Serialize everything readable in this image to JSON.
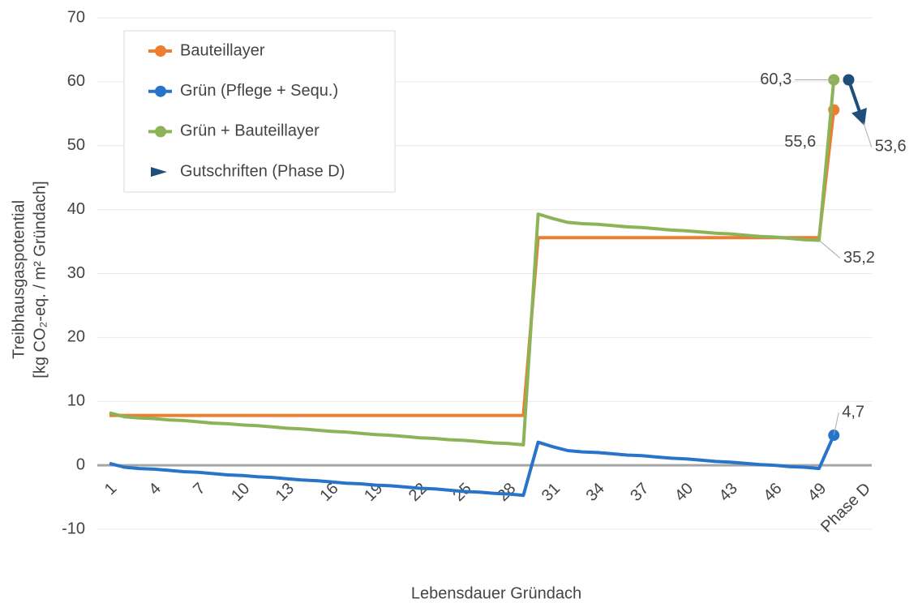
{
  "chart_data": {
    "type": "line",
    "y_label": [
      "Treibhausgaspotential",
      "[kg CO₂-eq. / m² Gründach]"
    ],
    "x_label": "Lebensdauer Gründach",
    "categories": [
      "1",
      null,
      null,
      "4",
      null,
      null,
      "7",
      null,
      null,
      "10",
      null,
      null,
      "13",
      null,
      null,
      "16",
      null,
      null,
      "19",
      null,
      null,
      "22",
      null,
      null,
      "25",
      null,
      null,
      "28",
      null,
      null,
      "31",
      null,
      null,
      "34",
      null,
      null,
      "37",
      null,
      null,
      "40",
      null,
      null,
      "43",
      null,
      null,
      "46",
      null,
      null,
      "49",
      null,
      null,
      "Phase D"
    ],
    "ylim": [
      -10,
      70
    ],
    "yticks": [
      -10,
      0,
      10,
      20,
      30,
      40,
      50,
      60,
      70
    ],
    "grid": true,
    "legend": "top-left",
    "series": [
      {
        "name": "Bauteillayer",
        "color": "#ed7d31",
        "values": [
          7.8,
          7.8,
          7.8,
          7.8,
          7.8,
          7.8,
          7.8,
          7.8,
          7.8,
          7.8,
          7.8,
          7.8,
          7.8,
          7.8,
          7.8,
          7.8,
          7.8,
          7.8,
          7.8,
          7.8,
          7.8,
          7.8,
          7.8,
          7.8,
          7.8,
          7.8,
          7.8,
          7.8,
          7.8,
          35.6,
          35.6,
          35.6,
          35.6,
          35.6,
          35.6,
          35.6,
          35.6,
          35.6,
          35.6,
          35.6,
          35.6,
          35.6,
          35.6,
          35.6,
          35.6,
          35.6,
          35.6,
          35.6,
          35.6,
          55.6,
          null,
          null
        ],
        "value_labels": [
          null,
          null,
          null,
          null,
          null,
          null,
          null,
          null,
          null,
          null,
          null,
          null,
          null,
          null,
          null,
          null,
          null,
          null,
          null,
          null,
          null,
          null,
          null,
          null,
          null,
          null,
          null,
          null,
          null,
          null,
          null,
          null,
          null,
          null,
          null,
          null,
          null,
          null,
          null,
          null,
          null,
          null,
          null,
          null,
          null,
          null,
          null,
          null,
          null,
          "55,6",
          null,
          null
        ]
      },
      {
        "name": "Grün (Pflege + Sequ.)",
        "color": "#2874c8",
        "values": [
          0.3,
          -0.3,
          -0.5,
          -0.6,
          -0.8,
          -1.0,
          -1.1,
          -1.3,
          -1.5,
          -1.6,
          -1.8,
          -1.9,
          -2.1,
          -2.3,
          -2.4,
          -2.6,
          -2.8,
          -2.9,
          -3.1,
          -3.2,
          -3.4,
          -3.6,
          -3.7,
          -3.9,
          -4.1,
          -4.2,
          -4.4,
          -4.5,
          -4.7,
          3.6,
          2.9,
          2.3,
          2.1,
          2.0,
          1.8,
          1.6,
          1.5,
          1.3,
          1.1,
          1.0,
          0.8,
          0.6,
          0.5,
          0.3,
          0.1,
          0.0,
          -0.2,
          -0.3,
          -0.5,
          4.7,
          null,
          null
        ],
        "value_labels": [
          null,
          null,
          null,
          null,
          null,
          null,
          null,
          null,
          null,
          null,
          null,
          null,
          null,
          null,
          null,
          null,
          null,
          null,
          null,
          null,
          null,
          null,
          null,
          null,
          null,
          null,
          null,
          null,
          null,
          null,
          null,
          null,
          null,
          null,
          null,
          null,
          null,
          null,
          null,
          null,
          null,
          null,
          null,
          null,
          null,
          null,
          null,
          null,
          null,
          "4,7",
          null,
          null
        ]
      },
      {
        "name": "Grün + Bauteillayer",
        "color": "#8cb357",
        "values": [
          8.2,
          7.6,
          7.4,
          7.3,
          7.1,
          7.0,
          6.8,
          6.6,
          6.5,
          6.3,
          6.2,
          6.0,
          5.8,
          5.7,
          5.5,
          5.3,
          5.2,
          5.0,
          4.8,
          4.7,
          4.5,
          4.3,
          4.2,
          4.0,
          3.9,
          3.7,
          3.5,
          3.4,
          3.2,
          39.3,
          38.6,
          38.0,
          37.8,
          37.7,
          37.5,
          37.3,
          37.2,
          37.0,
          36.8,
          36.7,
          36.5,
          36.3,
          36.2,
          36.0,
          35.8,
          35.7,
          35.5,
          35.3,
          35.2,
          60.3,
          null,
          null
        ],
        "value_labels": [
          null,
          null,
          null,
          null,
          null,
          null,
          null,
          null,
          null,
          null,
          null,
          null,
          null,
          null,
          null,
          null,
          null,
          null,
          null,
          null,
          null,
          null,
          null,
          null,
          null,
          null,
          null,
          null,
          null,
          null,
          null,
          null,
          null,
          null,
          null,
          null,
          null,
          null,
          null,
          null,
          null,
          null,
          null,
          null,
          null,
          null,
          null,
          null,
          "35,2",
          "60,3",
          null,
          null
        ]
      },
      {
        "name": "Gutschriften (Phase D)",
        "color": "#1f4e79",
        "style": "arrow",
        "values": [
          null,
          null,
          null,
          null,
          null,
          null,
          null,
          null,
          null,
          null,
          null,
          null,
          null,
          null,
          null,
          null,
          null,
          null,
          null,
          null,
          null,
          null,
          null,
          null,
          null,
          null,
          null,
          null,
          null,
          null,
          null,
          null,
          null,
          null,
          null,
          null,
          null,
          null,
          null,
          null,
          null,
          null,
          null,
          null,
          null,
          null,
          null,
          null,
          null,
          null,
          60.3,
          53.6
        ],
        "value_labels": [
          null,
          null,
          null,
          null,
          null,
          null,
          null,
          null,
          null,
          null,
          null,
          null,
          null,
          null,
          null,
          null,
          null,
          null,
          null,
          null,
          null,
          null,
          null,
          null,
          null,
          null,
          null,
          null,
          null,
          null,
          null,
          null,
          null,
          null,
          null,
          null,
          null,
          null,
          null,
          null,
          null,
          null,
          null,
          null,
          null,
          null,
          null,
          null,
          null,
          null,
          null,
          "53,6"
        ]
      }
    ]
  }
}
